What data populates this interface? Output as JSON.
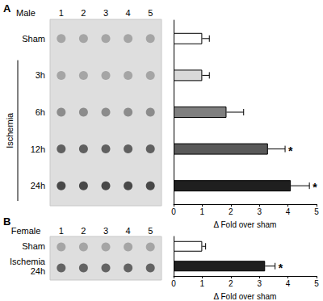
{
  "chart_data": [
    {
      "type": "bar",
      "orientation": "horizontal",
      "title": "A",
      "subtitle": "Male",
      "lanes": [
        "1",
        "2",
        "3",
        "4",
        "5"
      ],
      "group_label": "Ischemia",
      "group_categories": [
        "3h",
        "6h",
        "12h",
        "24h"
      ],
      "categories": [
        "Sham",
        "3h",
        "6h",
        "12h",
        "24h"
      ],
      "values": [
        1.0,
        1.0,
        1.85,
        3.3,
        4.1
      ],
      "errors": [
        0.25,
        0.25,
        0.6,
        0.6,
        0.65
      ],
      "significance": [
        null,
        null,
        null,
        "*",
        "*"
      ],
      "colors": [
        "#ffffff",
        "#d9d9d9",
        "#7f7f7f",
        "#595959",
        "#1f1f1f"
      ],
      "xlabel": "Δ Fold over sham",
      "xlim": [
        0,
        5
      ],
      "xticks": [
        0,
        1,
        2,
        3,
        4,
        5
      ]
    },
    {
      "type": "bar",
      "orientation": "horizontal",
      "title": "B",
      "subtitle": "Female",
      "lanes": [
        "1",
        "2",
        "3",
        "4",
        "5"
      ],
      "categories": [
        "Sham",
        "Ischemia 24h"
      ],
      "values": [
        1.0,
        3.2
      ],
      "errors": [
        0.12,
        0.35
      ],
      "significance": [
        null,
        "*"
      ],
      "colors": [
        "#ffffff",
        "#1f1f1f"
      ],
      "xlabel": "Δ Fold over sham",
      "xlim": [
        0,
        5
      ],
      "xticks": [
        0,
        1,
        2,
        3,
        4,
        5
      ]
    }
  ]
}
